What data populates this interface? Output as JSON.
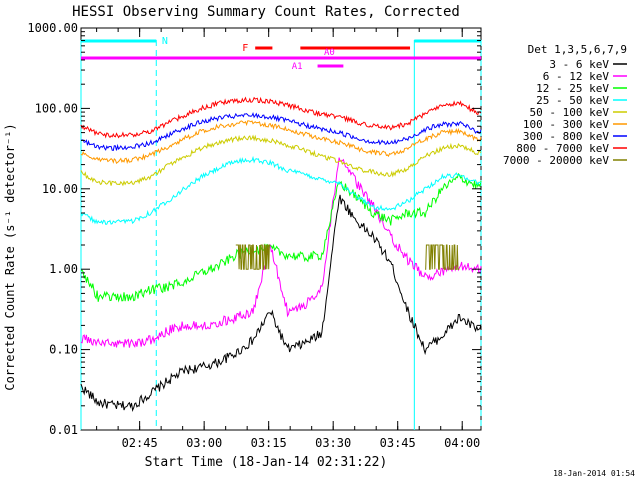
{
  "chart_data": {
    "type": "line",
    "title": "HESSI Observing Summary Count Rates, Corrected",
    "xlabel": "Start Time (18-Jan-14 02:31:22)",
    "ylabel": "Corrected Count Rate (s⁻¹ detector⁻¹)",
    "yscale": "log",
    "ylim": [
      0.01,
      1000
    ],
    "xlim_minutes_after_start": [
      0,
      93
    ],
    "y_ticks": [
      "0.01",
      "0.10",
      "1.00",
      "10.00",
      "100.00",
      "1000.00"
    ],
    "x_ticks": [
      "02:45",
      "03:00",
      "03:15",
      "03:30",
      "03:45",
      "04:00"
    ],
    "legend_title": "Det 1,3,5,6,7,9",
    "x_minutes": [
      0,
      4,
      8,
      12,
      16,
      20,
      24,
      28,
      32,
      36,
      40,
      44,
      48,
      52,
      56,
      60,
      64,
      68,
      72,
      76,
      80,
      84,
      88,
      92
    ],
    "series": [
      {
        "name": "3 - 6 keV",
        "color": "#000000",
        "values": [
          0.035,
          0.022,
          0.02,
          0.02,
          0.028,
          0.04,
          0.055,
          0.06,
          0.07,
          0.09,
          0.13,
          0.3,
          0.1,
          0.12,
          0.16,
          8.0,
          4.0,
          2.5,
          1.2,
          0.3,
          0.1,
          0.15,
          0.25,
          0.18
        ]
      },
      {
        "name": "6 - 12 keV",
        "color": "#ff00ff",
        "values": [
          0.14,
          0.12,
          0.12,
          0.12,
          0.13,
          0.17,
          0.2,
          0.2,
          0.22,
          0.25,
          0.3,
          2.0,
          0.3,
          0.35,
          0.6,
          25.0,
          12.0,
          6.0,
          2.5,
          1.3,
          0.8,
          0.9,
          1.1,
          1.0
        ]
      },
      {
        "name": "12 - 25 keV",
        "color": "#00ff00",
        "values": [
          1.0,
          0.45,
          0.45,
          0.45,
          0.55,
          0.6,
          0.7,
          0.9,
          1.1,
          1.5,
          1.8,
          1.8,
          1.5,
          1.4,
          1.5,
          12.0,
          8.0,
          5.0,
          4.0,
          5.0,
          5.0,
          10.0,
          14.0,
          11.0
        ]
      },
      {
        "name": "25 - 50 keV",
        "color": "#00ffff",
        "values": [
          5.0,
          3.8,
          3.8,
          4.0,
          5.0,
          7.0,
          10.0,
          14.0,
          18.0,
          22.0,
          23.0,
          21.0,
          17.0,
          15.0,
          13.0,
          12.0,
          8.0,
          6.0,
          5.5,
          7.0,
          10.0,
          14.0,
          15.0,
          12.0
        ]
      },
      {
        "name": "50 - 100 keV",
        "color": "#cccc00",
        "values": [
          16.0,
          12.0,
          11.5,
          12.0,
          14.0,
          19.0,
          25.0,
          32.0,
          38.0,
          42.0,
          43.0,
          40.0,
          35.0,
          30.0,
          25.0,
          22.0,
          18.0,
          16.0,
          15.0,
          18.0,
          25.0,
          32.0,
          35.0,
          28.0
        ]
      },
      {
        "name": "100 - 300 keV",
        "color": "#ff9900",
        "values": [
          28.0,
          23.0,
          22.0,
          23.0,
          26.0,
          33.0,
          42.0,
          52.0,
          60.0,
          65.0,
          66.0,
          62.0,
          55.0,
          48.0,
          42.0,
          38.0,
          32.0,
          28.0,
          27.0,
          32.0,
          42.0,
          50.0,
          52.0,
          42.0
        ]
      },
      {
        "name": "300 - 800 keV",
        "color": "#0000ff",
        "values": [
          40.0,
          33.0,
          32.0,
          33.0,
          37.0,
          46.0,
          57.0,
          68.0,
          76.0,
          80.0,
          82.0,
          78.0,
          70.0,
          62.0,
          55.0,
          50.0,
          43.0,
          38.0,
          37.0,
          42.0,
          55.0,
          63.0,
          65.0,
          52.0
        ]
      },
      {
        "name": "800 - 7000 keV",
        "color": "#ff0000",
        "values": [
          60.0,
          48.0,
          46.0,
          47.0,
          52.0,
          65.0,
          82.0,
          100.0,
          115.0,
          125.0,
          128.0,
          122.0,
          110.0,
          95.0,
          85.0,
          78.0,
          68.0,
          60.0,
          58.0,
          65.0,
          85.0,
          110.0,
          115.0,
          90.0
        ]
      },
      {
        "name": "7000 - 20000 keV",
        "color": "#808000",
        "segments": [
          {
            "from": 36,
            "to": 44,
            "value": 2.0
          },
          {
            "from": 80,
            "to": 88,
            "value": 2.0
          }
        ]
      }
    ],
    "annotations": {
      "N_label": "N",
      "F_label": "F",
      "A0_label": "A0",
      "A1_label": "A1",
      "night_color": "#00ffff",
      "flare_color": "#ff0000",
      "attenuator_color": "#ff00ff",
      "night_intervals": [
        [
          0,
          17.5
        ],
        [
          77.5,
          93
        ]
      ],
      "flare_intervals": [
        [
          40.5,
          44.5
        ],
        [
          51,
          76.5
        ]
      ],
      "attenuator_line": [
        0,
        93
      ],
      "a0_interval": [
        54,
        61.5
      ],
      "a1_interval": [
        55,
        61
      ]
    }
  },
  "footer": {
    "timestamp": "18-Jan-2014 01:54"
  }
}
